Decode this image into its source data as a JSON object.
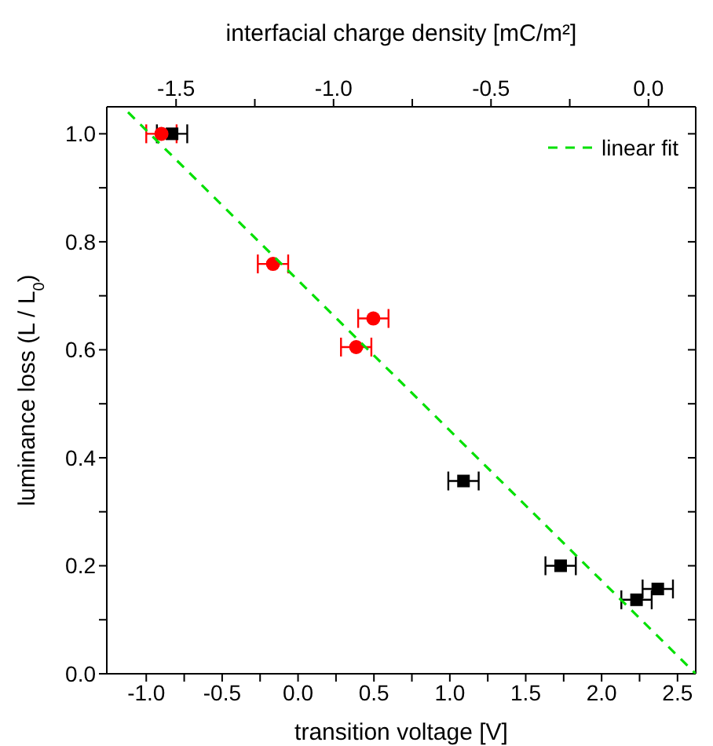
{
  "chart_data": {
    "type": "scatter",
    "xlabel": "transition voltage [V]",
    "ylabel": "luminance loss (L / L$_{0}$)",
    "x2label": "interfacial charge density [mC/m²]",
    "xlim": [
      -1.26,
      2.62
    ],
    "xticks": [
      {
        "value": -1,
        "label": "-1.0"
      },
      {
        "value": -0.75,
        "label": null
      },
      -0.5,
      {
        "value": -0.25,
        "label": null
      },
      {
        "value": 0,
        "label": "0.0"
      },
      {
        "value": 0.25,
        "label": null
      },
      0.5,
      {
        "value": 0.75,
        "label": null
      },
      {
        "value": 1,
        "label": "1.0"
      },
      {
        "value": 1.25,
        "label": null
      },
      1.5,
      {
        "value": 1.75,
        "label": null
      },
      {
        "value": 2,
        "label": "2.0"
      },
      {
        "value": 2.25,
        "label": null
      },
      2.5
    ],
    "x2lim": [
      -1.72,
      0.15
    ],
    "x2ticks": [
      -1.5,
      {
        "value": -1.25,
        "label": null
      },
      {
        "value": -1,
        "label": "-1.0"
      },
      {
        "value": -0.75,
        "label": null
      },
      -0.5,
      {
        "value": -0.25,
        "label": null
      },
      {
        "value": 0,
        "label": "0.0"
      }
    ],
    "ylim": [
      0,
      1.05
    ],
    "yticks": [
      {
        "value": 0,
        "label": "0.0"
      },
      {
        "value": 0.1,
        "label": null
      },
      0.2,
      {
        "value": 0.3,
        "label": null
      },
      0.4,
      {
        "value": 0.5,
        "label": null
      },
      0.6,
      {
        "value": 0.7,
        "label": null
      },
      0.8,
      {
        "value": 0.9,
        "label": null
      },
      {
        "value": 1,
        "label": "1.0"
      }
    ],
    "legend": "top right",
    "series": [
      {
        "marker": "square",
        "color": "#000000",
        "x": [
          -0.83,
          1.09,
          1.73,
          2.23,
          2.37
        ],
        "values": [
          1.0,
          0.357,
          0.2,
          0.137,
          0.157
        ],
        "xerrors": [
          0.1,
          0.1,
          0.1,
          0.1,
          0.1
        ]
      },
      {
        "marker": "circle",
        "color": "#ff0000",
        "x": [
          -0.9,
          -0.165,
          0.496,
          0.383
        ],
        "values": [
          1.0,
          0.759,
          0.658,
          0.605
        ],
        "xerrors": [
          0.1,
          0.1,
          0.1,
          0.1
        ]
      },
      {
        "type": "line",
        "name": "linear fit",
        "color": "#00e000",
        "line_style": "dashed",
        "marker": "none",
        "x": [
          -1.12,
          2.62
        ],
        "values": [
          1.04,
          0
        ]
      }
    ]
  }
}
